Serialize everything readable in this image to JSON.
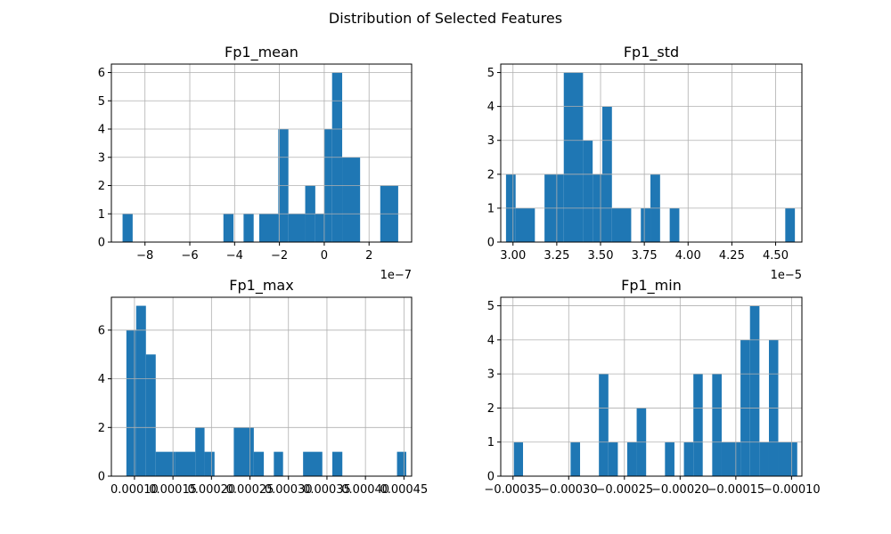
{
  "suptitle": "Distribution of Selected Features",
  "chart_data": [
    {
      "type": "bar",
      "subtype": "histogram",
      "title": "Fp1_mean",
      "xlabel": "",
      "ylabel": "",
      "x_offset_label": "1e−7",
      "xlim": [
        -9.5,
        3.9
      ],
      "ylim": [
        0,
        6.3
      ],
      "xticks": [
        {
          "value": -8,
          "label": "−8"
        },
        {
          "value": -6,
          "label": "−6"
        },
        {
          "value": -4,
          "label": "−4"
        },
        {
          "value": -2,
          "label": "−2"
        },
        {
          "value": 0,
          "label": "0"
        },
        {
          "value": 2,
          "label": "2"
        }
      ],
      "yticks": [
        0,
        1,
        2,
        3,
        4,
        5,
        6
      ],
      "grid": true,
      "color": "#1f77b4",
      "bins": [
        {
          "x0": -9.0,
          "x1": -8.55,
          "count": 1
        },
        {
          "x0": -4.5,
          "x1": -4.05,
          "count": 1
        },
        {
          "x0": -3.6,
          "x1": -3.15,
          "count": 1
        },
        {
          "x0": -2.9,
          "x1": -2.05,
          "count": 1
        },
        {
          "x0": -2.05,
          "x1": -1.6,
          "count": 4
        },
        {
          "x0": -1.6,
          "x1": -0.85,
          "count": 1
        },
        {
          "x0": -0.85,
          "x1": -0.4,
          "count": 2
        },
        {
          "x0": -0.4,
          "x1": 0.0,
          "count": 1
        },
        {
          "x0": 0.0,
          "x1": 0.35,
          "count": 4
        },
        {
          "x0": 0.35,
          "x1": 0.8,
          "count": 6
        },
        {
          "x0": 0.8,
          "x1": 1.6,
          "count": 3
        },
        {
          "x0": 2.5,
          "x1": 3.3,
          "count": 2
        }
      ]
    },
    {
      "type": "bar",
      "subtype": "histogram",
      "title": "Fp1_std",
      "xlabel": "",
      "ylabel": "",
      "x_offset_label": "1e−5",
      "xlim": [
        2.93,
        4.65
      ],
      "ylim": [
        0,
        5.25
      ],
      "xticks": [
        {
          "value": 3.0,
          "label": "3.00"
        },
        {
          "value": 3.25,
          "label": "3.25"
        },
        {
          "value": 3.5,
          "label": "3.50"
        },
        {
          "value": 3.75,
          "label": "3.75"
        },
        {
          "value": 4.0,
          "label": "4.00"
        },
        {
          "value": 4.25,
          "label": "4.25"
        },
        {
          "value": 4.5,
          "label": "4.50"
        }
      ],
      "yticks": [
        0,
        1,
        2,
        3,
        4,
        5
      ],
      "grid": true,
      "color": "#1f77b4",
      "bins": [
        {
          "x0": 2.96,
          "x1": 3.015,
          "count": 2
        },
        {
          "x0": 3.015,
          "x1": 3.125,
          "count": 1
        },
        {
          "x0": 3.18,
          "x1": 3.29,
          "count": 2
        },
        {
          "x0": 3.29,
          "x1": 3.4,
          "count": 5
        },
        {
          "x0": 3.4,
          "x1": 3.455,
          "count": 3
        },
        {
          "x0": 3.455,
          "x1": 3.51,
          "count": 2
        },
        {
          "x0": 3.51,
          "x1": 3.565,
          "count": 4
        },
        {
          "x0": 3.565,
          "x1": 3.675,
          "count": 1
        },
        {
          "x0": 3.73,
          "x1": 3.785,
          "count": 1
        },
        {
          "x0": 3.785,
          "x1": 3.84,
          "count": 2
        },
        {
          "x0": 3.895,
          "x1": 3.95,
          "count": 1
        },
        {
          "x0": 4.555,
          "x1": 4.61,
          "count": 1
        }
      ]
    },
    {
      "type": "bar",
      "subtype": "histogram",
      "title": "Fp1_max",
      "xlabel": "",
      "ylabel": "",
      "xlim": [
        7e-05,
        0.00046
      ],
      "ylim": [
        0,
        7.35
      ],
      "xticks": [
        {
          "value": 0.0001,
          "label": "0.00010"
        },
        {
          "value": 0.00015,
          "label": "0.00015"
        },
        {
          "value": 0.0002,
          "label": "0.00020"
        },
        {
          "value": 0.00025,
          "label": "0.00025"
        },
        {
          "value": 0.0003,
          "label": "0.00030"
        },
        {
          "value": 0.00035,
          "label": "0.00035"
        },
        {
          "value": 0.0004,
          "label": "0.00040"
        },
        {
          "value": 0.00045,
          "label": "0.00045"
        }
      ],
      "yticks": [
        0,
        2,
        4,
        6
      ],
      "grid": true,
      "color": "#1f77b4",
      "bins": [
        {
          "x0": 8.95e-05,
          "x1": 0.0001022,
          "count": 6
        },
        {
          "x0": 0.0001022,
          "x1": 0.0001149,
          "count": 7
        },
        {
          "x0": 0.0001149,
          "x1": 0.0001276,
          "count": 5
        },
        {
          "x0": 0.0001276,
          "x1": 0.000153,
          "count": 1
        },
        {
          "x0": 0.000153,
          "x1": 0.000179,
          "count": 1
        },
        {
          "x0": 0.000179,
          "x1": 0.000191,
          "count": 2
        },
        {
          "x0": 0.000191,
          "x1": 0.000204,
          "count": 1
        },
        {
          "x0": 0.000229,
          "x1": 0.000255,
          "count": 2
        },
        {
          "x0": 0.000255,
          "x1": 0.000268,
          "count": 1
        },
        {
          "x0": 0.000281,
          "x1": 0.000293,
          "count": 1
        },
        {
          "x0": 0.000319,
          "x1": 0.000344,
          "count": 1
        },
        {
          "x0": 0.000357,
          "x1": 0.00037,
          "count": 1
        },
        {
          "x0": 0.000441,
          "x1": 0.000453,
          "count": 1
        }
      ]
    },
    {
      "type": "bar",
      "subtype": "histogram",
      "title": "Fp1_min",
      "xlabel": "",
      "ylabel": "",
      "xlim": [
        -0.000361,
        -9.07e-05
      ],
      "ylim": [
        0,
        5.25
      ],
      "xticks": [
        {
          "value": -0.00035,
          "label": "−0.00035"
        },
        {
          "value": -0.0003,
          "label": "−0.00030"
        },
        {
          "value": -0.00025,
          "label": "−0.00025"
        },
        {
          "value": -0.0002,
          "label": "−0.00020"
        },
        {
          "value": -0.00015,
          "label": "−0.00015"
        },
        {
          "value": -0.0001,
          "label": "−0.00010"
        }
      ],
      "yticks": [
        0,
        1,
        2,
        3,
        4,
        5
      ],
      "grid": true,
      "color": "#1f77b4",
      "bins": [
        {
          "x0": -0.0003492,
          "x1": -0.000341,
          "count": 1
        },
        {
          "x0": -0.0002983,
          "x1": -0.0002898,
          "count": 1
        },
        {
          "x0": -0.0002729,
          "x1": -0.0002644,
          "count": 3
        },
        {
          "x0": -0.0002644,
          "x1": -0.0002559,
          "count": 1
        },
        {
          "x0": -0.0002475,
          "x1": -0.000239,
          "count": 1
        },
        {
          "x0": -0.000239,
          "x1": -0.0002305,
          "count": 2
        },
        {
          "x0": -0.0002136,
          "x1": -0.0002051,
          "count": 1
        },
        {
          "x0": -0.0001966,
          "x1": -0.0001881,
          "count": 1
        },
        {
          "x0": -0.0001881,
          "x1": -0.0001797,
          "count": 3
        },
        {
          "x0": -0.0001712,
          "x1": -0.0001627,
          "count": 3
        },
        {
          "x0": -0.0001627,
          "x1": -0.0001458,
          "count": 1
        },
        {
          "x0": -0.0001458,
          "x1": -0.0001373,
          "count": 4
        },
        {
          "x0": -0.0001373,
          "x1": -0.0001288,
          "count": 5
        },
        {
          "x0": -0.0001288,
          "x1": -0.0001203,
          "count": 1
        },
        {
          "x0": -0.0001203,
          "x1": -0.0001119,
          "count": 4
        },
        {
          "x0": -0.0001119,
          "x1": -9.49e-05,
          "count": 1
        }
      ]
    }
  ]
}
